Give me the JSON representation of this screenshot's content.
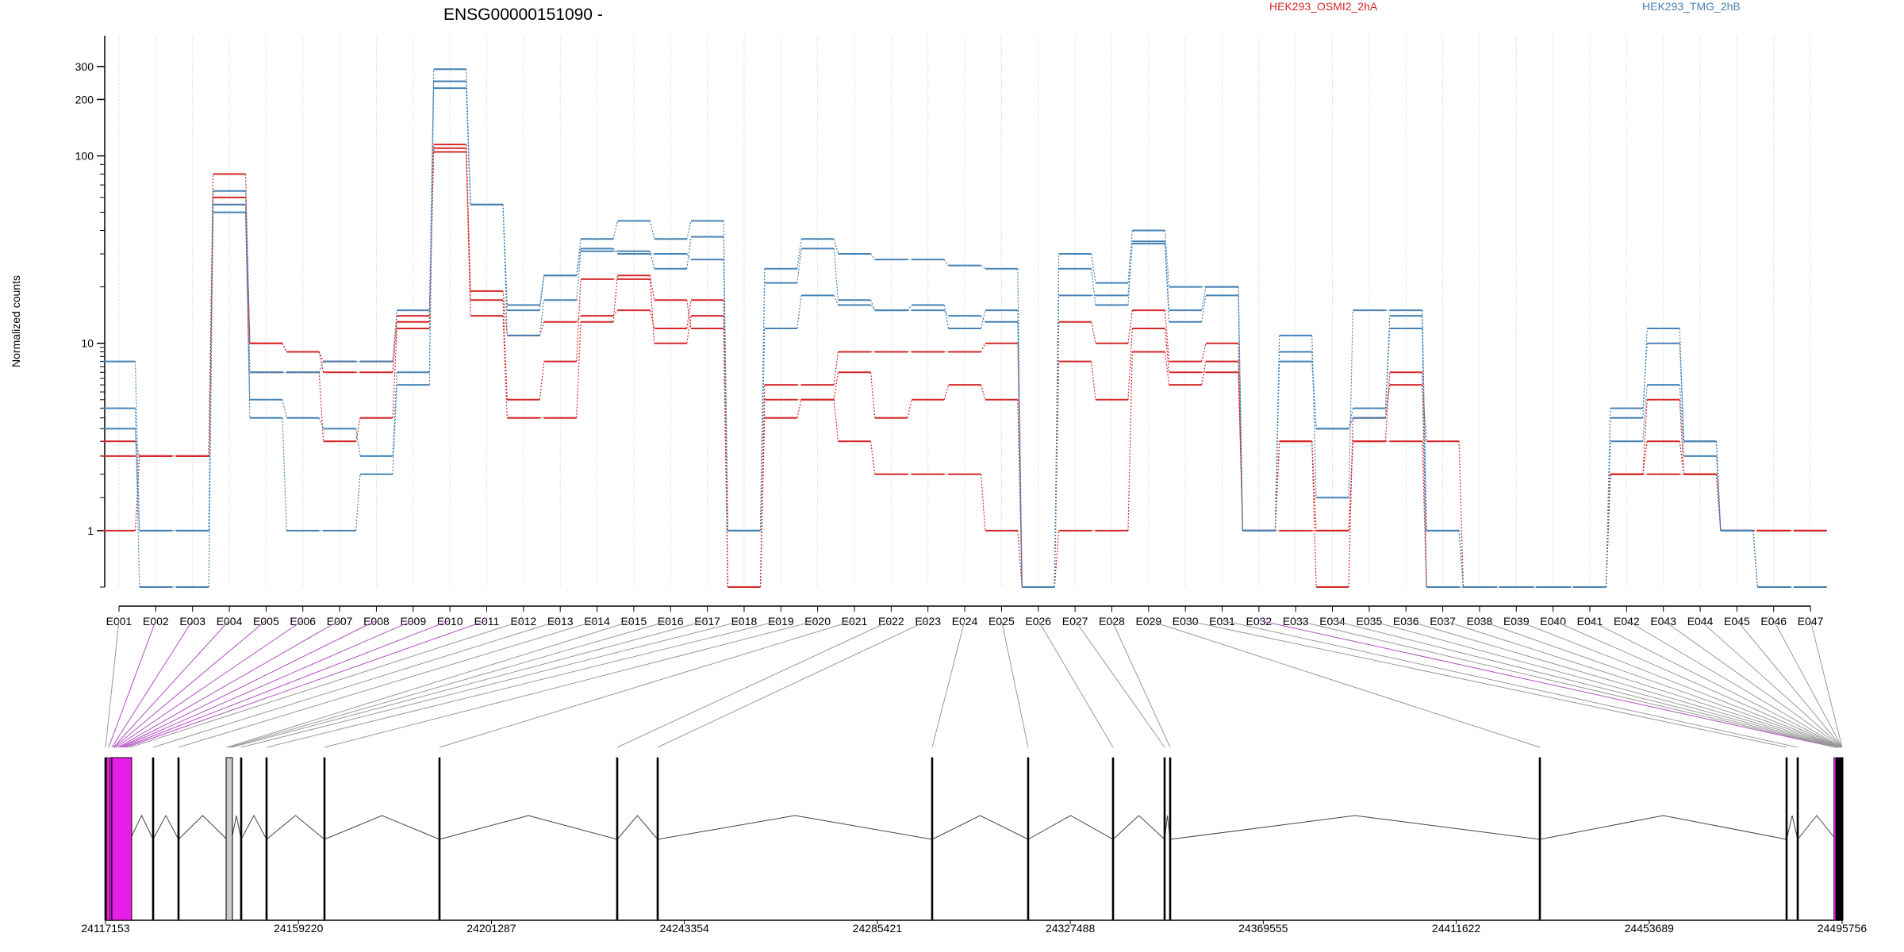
{
  "chart_data": {
    "type": "line",
    "title": "ENSG00000151090 -",
    "ylabel": "Normalized counts",
    "xlabel": "",
    "yscale": "log",
    "ylim": [
      0.5,
      350
    ],
    "yticks": [
      1,
      10,
      100,
      200,
      300
    ],
    "grid": "vertical dotted lines at exon bins",
    "legend_placement": "top-right",
    "categories": [
      "E001",
      "E002",
      "E003",
      "E004",
      "E005",
      "E006",
      "E007",
      "E008",
      "E009",
      "E010",
      "E011",
      "E012",
      "E013",
      "E014",
      "E015",
      "E016",
      "E017",
      "E018",
      "E019",
      "E020",
      "E021",
      "E022",
      "E023",
      "E024",
      "E025",
      "E026",
      "E027",
      "E028",
      "E029",
      "E030",
      "E031",
      "E032",
      "E033",
      "E034",
      "E035",
      "E036",
      "E037",
      "E038",
      "E039",
      "E040",
      "E041",
      "E042",
      "E043",
      "E044",
      "E045",
      "E046",
      "E047"
    ],
    "series": [
      {
        "name": "HEK293_OSMI2_2hA",
        "color": "#d62728",
        "replicates": [
          [
            1,
            2.5,
            2.5,
            80,
            10,
            9,
            8,
            8,
            14,
            115,
            19,
            11,
            13,
            14,
            15,
            12,
            17,
            0.5,
            4,
            5,
            3,
            2,
            2,
            2,
            1,
            0.5,
            8,
            5,
            12,
            7,
            7,
            1,
            1,
            1,
            3,
            3,
            0.5,
            0.5,
            0.5,
            0.5,
            0.5,
            2,
            2,
            2,
            1,
            1,
            1
          ],
          [
            2.5,
            2.5,
            2.5,
            60,
            7,
            7,
            3,
            4,
            12,
            110,
            14,
            4,
            4,
            13,
            23,
            17,
            12,
            0.5,
            5,
            5,
            7,
            4,
            5,
            6,
            5,
            0.5,
            1,
            1,
            9,
            6,
            8,
            1,
            3,
            0.5,
            4,
            6,
            3,
            0.5,
            0.5,
            0.5,
            0.5,
            2,
            3,
            2,
            1,
            1,
            1
          ],
          [
            3,
            2.5,
            2.5,
            55,
            10,
            9,
            7,
            7,
            13,
            105,
            17,
            5,
            8,
            22,
            22,
            10,
            14,
            0.5,
            6,
            6,
            9,
            9,
            9,
            9,
            10,
            0.5,
            13,
            10,
            15,
            8,
            10,
            1,
            3,
            1,
            3,
            7,
            0.5,
            0.5,
            0.5,
            0.5,
            0.5,
            2,
            5,
            2,
            1,
            1,
            1
          ]
        ]
      },
      {
        "name": "HEK293_TMG_2hB",
        "color": "#4682b4",
        "replicates": [
          [
            8,
            1,
            1,
            65,
            7,
            7,
            8,
            8,
            15,
            290,
            55,
            16,
            23,
            36,
            45,
            36,
            45,
            1,
            25,
            36,
            30,
            28,
            28,
            26,
            25,
            0.5,
            30,
            21,
            40,
            20,
            20,
            1,
            11,
            1.5,
            15,
            15,
            1,
            0.5,
            0.5,
            0.5,
            0.5,
            4,
            12,
            3,
            1,
            0.5,
            0.5
          ],
          [
            4.5,
            0.5,
            0.5,
            55,
            5,
            4,
            3.5,
            2.5,
            7,
            230,
            55,
            11,
            17,
            31,
            31,
            25,
            37,
            1,
            21,
            32,
            17,
            15,
            15,
            14,
            13,
            0.5,
            25,
            16,
            35,
            13,
            18,
            1,
            9,
            3.5,
            4.5,
            14,
            1,
            0.5,
            0.5,
            0.5,
            0.5,
            3,
            6,
            2.5,
            1,
            0.5,
            0.5
          ],
          [
            3.5,
            1,
            1,
            50,
            4,
            1,
            1,
            2,
            6,
            250,
            55,
            15,
            23,
            32,
            30,
            30,
            28,
            1,
            12,
            18,
            16,
            15,
            16,
            12,
            15,
            0.5,
            18,
            18,
            34,
            15,
            20,
            1,
            8,
            3.5,
            4,
            12,
            0.5,
            0.5,
            0.5,
            0.5,
            0.5,
            4.5,
            10,
            3,
            1,
            0.5,
            0.5
          ]
        ]
      }
    ],
    "genomic_axis_labels": [
      "24117153",
      "24159220",
      "24201287",
      "24243354",
      "24285421",
      "24327488",
      "24369555",
      "24411622",
      "24453689",
      "24495756"
    ],
    "gene_model": {
      "highlight_color": "#e61ee6",
      "highlighted_exons": [
        "E002",
        "E003",
        "E004",
        "E005",
        "E006",
        "E007",
        "E008",
        "E009",
        "E010",
        "E011",
        "E032"
      ]
    }
  }
}
